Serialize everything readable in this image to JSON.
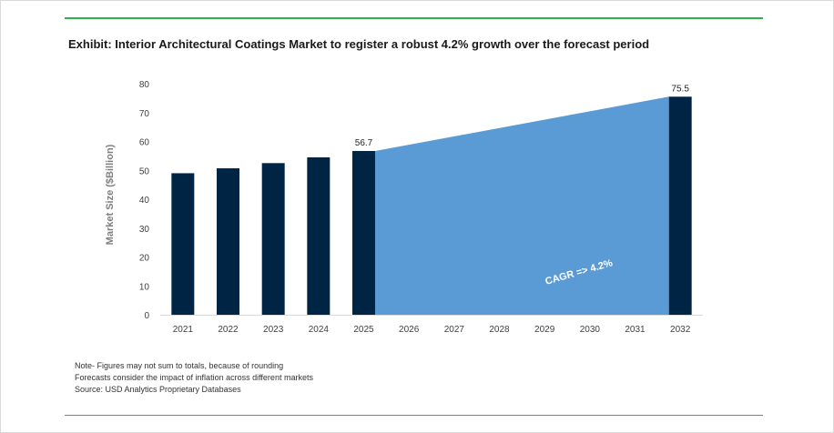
{
  "title": "Exhibit: Interior Architectural Coatings Market to register a robust 4.2% growth over the forecast period",
  "notes": [
    "Note- Figures may not sum to totals, because of rounding",
    "Forecasts consider the impact of inflation across different markets",
    "Source: USD Analytics Proprietary Databases"
  ],
  "colors": {
    "bar": "#002443",
    "forecast_area": "#5b9bd5",
    "title_rule": "#2db34a",
    "axis_text": "#404040",
    "ylabel_text": "#7f7f7f"
  },
  "chart_data": {
    "type": "bar",
    "categories": [
      "2021",
      "2022",
      "2023",
      "2024",
      "2025",
      "2026",
      "2027",
      "2028",
      "2029",
      "2030",
      "2031",
      "2032"
    ],
    "values": [
      49,
      50.7,
      52.5,
      54.5,
      56.7,
      null,
      null,
      null,
      null,
      null,
      null,
      75.5
    ],
    "data_labels": {
      "2025": "56.7",
      "2032": "75.5"
    },
    "forecast_area": {
      "from": "2025",
      "to": "2032",
      "start_value": 56.7,
      "end_value": 75.5
    },
    "annotation": "CAGR =>   4.2%",
    "ylabel": "Market Size ($Billion)",
    "xlabel": "",
    "ylim": [
      0,
      80
    ],
    "yticks": [
      0,
      10,
      20,
      30,
      40,
      50,
      60,
      70,
      80
    ],
    "grid": false
  }
}
